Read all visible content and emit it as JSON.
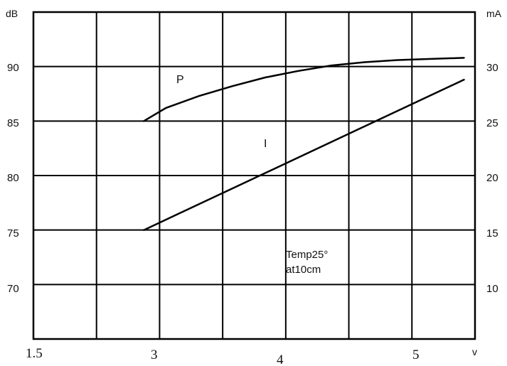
{
  "chart_data": {
    "type": "line",
    "units": {
      "left": "dB",
      "right": "mA",
      "x": "v"
    },
    "x_ticks": [
      "1.5",
      "3",
      "4",
      "5"
    ],
    "y_left_ticks": [
      "90",
      "85",
      "80",
      "75",
      "70"
    ],
    "y_right_ticks": [
      "30",
      "25",
      "20",
      "15",
      "10"
    ],
    "xlim": [
      1.5,
      5.5
    ],
    "ylim_left": [
      65,
      95
    ],
    "ylim_right": [
      5,
      35
    ],
    "grid": true,
    "series": [
      {
        "name": "P",
        "axis": "left",
        "x": [
          2.5,
          2.7,
          3.0,
          3.3,
          3.6,
          3.9,
          4.2,
          4.5,
          4.8,
          5.1,
          5.4
        ],
        "y": [
          85.0,
          86.2,
          87.3,
          88.2,
          89.0,
          89.6,
          90.1,
          90.4,
          90.6,
          90.7,
          90.8
        ]
      },
      {
        "name": "I",
        "axis": "right",
        "x": [
          2.5,
          5.4
        ],
        "y": [
          15.0,
          28.8
        ]
      }
    ],
    "annotations": [
      "Temp25°",
      "at10cm"
    ]
  }
}
